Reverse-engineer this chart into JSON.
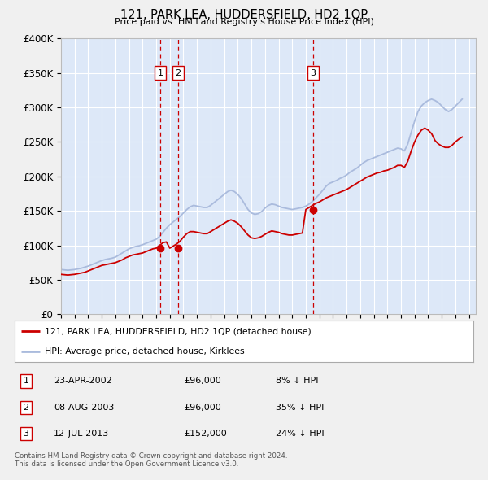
{
  "title": "121, PARK LEA, HUDDERSFIELD, HD2 1QP",
  "subtitle": "Price paid vs. HM Land Registry's House Price Index (HPI)",
  "ylim": [
    0,
    400000
  ],
  "xlim_start": 1995.0,
  "xlim_end": 2025.5,
  "fig_bg_color": "#f0f0f0",
  "plot_bg_color": "#dde8f8",
  "grid_color": "#ffffff",
  "hpi_color": "#aabbdd",
  "price_color": "#cc0000",
  "marker_color": "#cc0000",
  "vline_color": "#cc0000",
  "legend_label_price": "121, PARK LEA, HUDDERSFIELD, HD2 1QP (detached house)",
  "legend_label_hpi": "HPI: Average price, detached house, Kirklees",
  "footer": "Contains HM Land Registry data © Crown copyright and database right 2024.\nThis data is licensed under the Open Government Licence v3.0.",
  "transactions": [
    {
      "num": 1,
      "date": "23-APR-2002",
      "price": 96000,
      "hpi_note": "8% ↓ HPI",
      "year": 2002.3
    },
    {
      "num": 2,
      "date": "08-AUG-2003",
      "price": 96000,
      "hpi_note": "35% ↓ HPI",
      "year": 2003.6
    },
    {
      "num": 3,
      "date": "12-JUL-2013",
      "price": 152000,
      "hpi_note": "24% ↓ HPI",
      "year": 2013.53
    }
  ],
  "hpi_data": {
    "years": [
      1995.0,
      1995.25,
      1995.5,
      1995.75,
      1996.0,
      1996.25,
      1996.5,
      1996.75,
      1997.0,
      1997.25,
      1997.5,
      1997.75,
      1998.0,
      1998.25,
      1998.5,
      1998.75,
      1999.0,
      1999.25,
      1999.5,
      1999.75,
      2000.0,
      2000.25,
      2000.5,
      2000.75,
      2001.0,
      2001.25,
      2001.5,
      2001.75,
      2002.0,
      2002.25,
      2002.5,
      2002.75,
      2003.0,
      2003.25,
      2003.5,
      2003.75,
      2004.0,
      2004.25,
      2004.5,
      2004.75,
      2005.0,
      2005.25,
      2005.5,
      2005.75,
      2006.0,
      2006.25,
      2006.5,
      2006.75,
      2007.0,
      2007.25,
      2007.5,
      2007.75,
      2008.0,
      2008.25,
      2008.5,
      2008.75,
      2009.0,
      2009.25,
      2009.5,
      2009.75,
      2010.0,
      2010.25,
      2010.5,
      2010.75,
      2011.0,
      2011.25,
      2011.5,
      2011.75,
      2012.0,
      2012.25,
      2012.5,
      2012.75,
      2013.0,
      2013.25,
      2013.5,
      2013.75,
      2014.0,
      2014.25,
      2014.5,
      2014.75,
      2015.0,
      2015.25,
      2015.5,
      2015.75,
      2016.0,
      2016.25,
      2016.5,
      2016.75,
      2017.0,
      2017.25,
      2017.5,
      2017.75,
      2018.0,
      2018.25,
      2018.5,
      2018.75,
      2019.0,
      2019.25,
      2019.5,
      2019.75,
      2020.0,
      2020.25,
      2020.5,
      2020.75,
      2021.0,
      2021.25,
      2021.5,
      2021.75,
      2022.0,
      2022.25,
      2022.5,
      2022.75,
      2023.0,
      2023.25,
      2023.5,
      2023.75,
      2024.0,
      2024.25,
      2024.5
    ],
    "values": [
      65000,
      64500,
      64000,
      64500,
      65000,
      66000,
      67000,
      68500,
      70000,
      72000,
      74000,
      76000,
      78000,
      79500,
      80500,
      81500,
      83000,
      86000,
      89000,
      92000,
      95000,
      97000,
      98500,
      99500,
      101000,
      103000,
      105000,
      107000,
      109000,
      113000,
      119000,
      125000,
      130000,
      134000,
      138000,
      142000,
      147000,
      152000,
      156000,
      158000,
      157000,
      156000,
      155000,
      155000,
      158000,
      162000,
      166000,
      170000,
      174000,
      178000,
      180000,
      178000,
      174000,
      168000,
      160000,
      152000,
      147000,
      145000,
      146000,
      149000,
      154000,
      158000,
      160000,
      159000,
      157000,
      155000,
      154000,
      153000,
      152000,
      153000,
      154000,
      155000,
      157000,
      160000,
      164000,
      169000,
      174000,
      180000,
      186000,
      190000,
      192000,
      194000,
      197000,
      199000,
      202000,
      206000,
      209000,
      212000,
      216000,
      220000,
      223000,
      225000,
      227000,
      229000,
      231000,
      233000,
      235000,
      237000,
      239000,
      241000,
      240000,
      237000,
      247000,
      264000,
      280000,
      294000,
      302000,
      307000,
      310000,
      312000,
      310000,
      307000,
      302000,
      297000,
      294000,
      297000,
      302000,
      307000,
      312000
    ]
  },
  "price_data": {
    "years": [
      1995.0,
      1995.25,
      1995.5,
      1995.75,
      1996.0,
      1996.25,
      1996.5,
      1996.75,
      1997.0,
      1997.25,
      1997.5,
      1997.75,
      1998.0,
      1998.25,
      1998.5,
      1998.75,
      1999.0,
      1999.25,
      1999.5,
      1999.75,
      2000.0,
      2000.25,
      2000.5,
      2000.75,
      2001.0,
      2001.25,
      2001.5,
      2001.75,
      2002.0,
      2002.25,
      2002.5,
      2002.75,
      2003.0,
      2003.25,
      2003.5,
      2003.75,
      2004.0,
      2004.25,
      2004.5,
      2004.75,
      2005.0,
      2005.25,
      2005.5,
      2005.75,
      2006.0,
      2006.25,
      2006.5,
      2006.75,
      2007.0,
      2007.25,
      2007.5,
      2007.75,
      2008.0,
      2008.25,
      2008.5,
      2008.75,
      2009.0,
      2009.25,
      2009.5,
      2009.75,
      2010.0,
      2010.25,
      2010.5,
      2010.75,
      2011.0,
      2011.25,
      2011.5,
      2011.75,
      2012.0,
      2012.25,
      2012.5,
      2012.75,
      2013.0,
      2013.25,
      2013.5,
      2013.75,
      2014.0,
      2014.25,
      2014.5,
      2014.75,
      2015.0,
      2015.25,
      2015.5,
      2015.75,
      2016.0,
      2016.25,
      2016.5,
      2016.75,
      2017.0,
      2017.25,
      2017.5,
      2017.75,
      2018.0,
      2018.25,
      2018.5,
      2018.75,
      2019.0,
      2019.25,
      2019.5,
      2019.75,
      2020.0,
      2020.25,
      2020.5,
      2020.75,
      2021.0,
      2021.25,
      2021.5,
      2021.75,
      2022.0,
      2022.25,
      2022.5,
      2022.75,
      2023.0,
      2023.25,
      2023.5,
      2023.75,
      2024.0,
      2024.25,
      2024.5
    ],
    "values": [
      58000,
      57500,
      57000,
      57500,
      58000,
      59000,
      60000,
      61000,
      63000,
      65000,
      67000,
      69000,
      71000,
      72000,
      73000,
      74000,
      75000,
      77000,
      79000,
      82000,
      84000,
      86000,
      87000,
      88000,
      89000,
      91000,
      93000,
      95000,
      96000,
      100000,
      104000,
      105000,
      96000,
      99000,
      102000,
      106000,
      112000,
      117000,
      120000,
      120000,
      119000,
      118000,
      117000,
      117000,
      120000,
      123000,
      126000,
      129000,
      132000,
      135000,
      137000,
      135000,
      132000,
      127000,
      121000,
      115000,
      111000,
      110000,
      111000,
      113000,
      116000,
      119000,
      121000,
      120000,
      119000,
      117000,
      116000,
      115000,
      115000,
      116000,
      117000,
      118000,
      152000,
      155000,
      158000,
      161000,
      163000,
      166000,
      169000,
      171000,
      173000,
      175000,
      177000,
      179000,
      181000,
      184000,
      187000,
      190000,
      193000,
      196000,
      199000,
      201000,
      203000,
      205000,
      206000,
      208000,
      209000,
      211000,
      213000,
      216000,
      216000,
      213000,
      222000,
      237000,
      250000,
      260000,
      267000,
      270000,
      267000,
      262000,
      252000,
      247000,
      244000,
      242000,
      242000,
      245000,
      250000,
      254000,
      257000
    ]
  }
}
